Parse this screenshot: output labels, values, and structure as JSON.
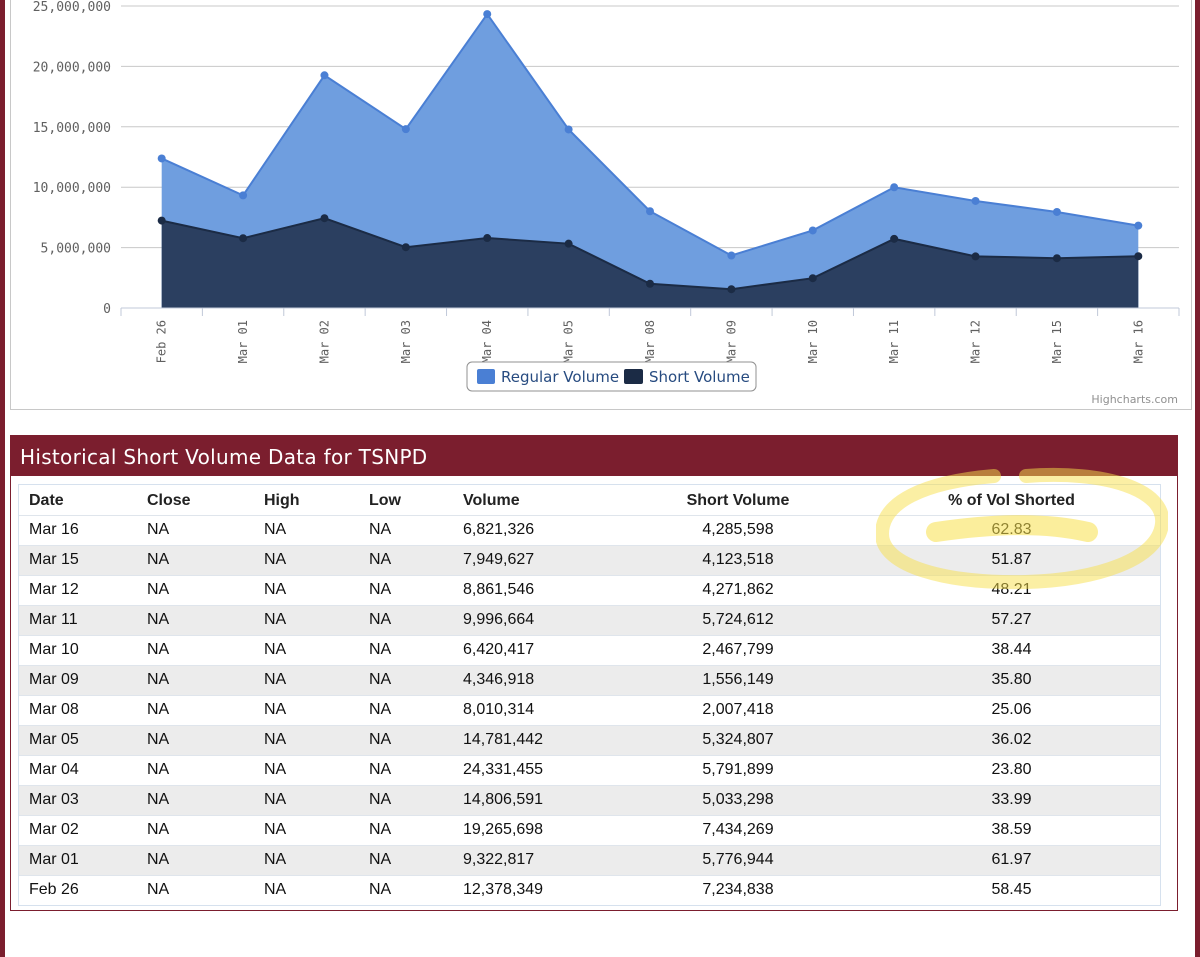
{
  "chart_data": {
    "type": "area",
    "categories": [
      "Feb 26",
      "Mar 01",
      "Mar 02",
      "Mar 03",
      "Mar 04",
      "Mar 05",
      "Mar 08",
      "Mar 09",
      "Mar 10",
      "Mar 11",
      "Mar 12",
      "Mar 15",
      "Mar 16"
    ],
    "series": [
      {
        "name": "Regular Volume",
        "color": "#4a7fd4",
        "fill": "#6f9edf",
        "values": [
          12378349,
          9322817,
          19265698,
          14806591,
          24331455,
          14781442,
          8010314,
          4346918,
          6420417,
          9996664,
          8861546,
          7949627,
          6821326
        ]
      },
      {
        "name": "Short Volume",
        "color": "#1b2b45",
        "fill": "#2b3f60",
        "values": [
          7234838,
          5776944,
          7434269,
          5033298,
          5791899,
          5324807,
          2007418,
          1556149,
          2467799,
          5724612,
          4271862,
          4123518,
          4285598
        ]
      }
    ],
    "y_ticks": [
      "0",
      "5,000,000",
      "10,000,000",
      "15,000,000",
      "20,000,000",
      "25,000,000"
    ],
    "ylim": [
      0,
      25000000
    ],
    "grid": true,
    "legend_position": "bottom-center"
  },
  "legend": {
    "regular": "Regular Volume",
    "short": "Short Volume"
  },
  "credit": "Highcharts.com",
  "table": {
    "title": "Historical Short Volume Data for TSNPD",
    "headers": [
      "Date",
      "Close",
      "High",
      "Low",
      "Volume",
      "Short Volume",
      "% of Vol Shorted"
    ],
    "rows": [
      [
        "Mar 16",
        "NA",
        "NA",
        "NA",
        "6,821,326",
        "4,285,598",
        "62.83"
      ],
      [
        "Mar 15",
        "NA",
        "NA",
        "NA",
        "7,949,627",
        "4,123,518",
        "51.87"
      ],
      [
        "Mar 12",
        "NA",
        "NA",
        "NA",
        "8,861,546",
        "4,271,862",
        "48.21"
      ],
      [
        "Mar 11",
        "NA",
        "NA",
        "NA",
        "9,996,664",
        "5,724,612",
        "57.27"
      ],
      [
        "Mar 10",
        "NA",
        "NA",
        "NA",
        "6,420,417",
        "2,467,799",
        "38.44"
      ],
      [
        "Mar 09",
        "NA",
        "NA",
        "NA",
        "4,346,918",
        "1,556,149",
        "35.80"
      ],
      [
        "Mar 08",
        "NA",
        "NA",
        "NA",
        "8,010,314",
        "2,007,418",
        "25.06"
      ],
      [
        "Mar 05",
        "NA",
        "NA",
        "NA",
        "14,781,442",
        "5,324,807",
        "36.02"
      ],
      [
        "Mar 04",
        "NA",
        "NA",
        "NA",
        "24,331,455",
        "5,791,899",
        "23.80"
      ],
      [
        "Mar 03",
        "NA",
        "NA",
        "NA",
        "14,806,591",
        "5,033,298",
        "33.99"
      ],
      [
        "Mar 02",
        "NA",
        "NA",
        "NA",
        "19,265,698",
        "7,434,269",
        "38.59"
      ],
      [
        "Mar 01",
        "NA",
        "NA",
        "NA",
        "9,322,817",
        "5,776,944",
        "61.97"
      ],
      [
        "Feb 26",
        "NA",
        "NA",
        "NA",
        "12,378,349",
        "7,234,838",
        "58.45"
      ]
    ]
  },
  "highlight_color": "#f7e04a"
}
